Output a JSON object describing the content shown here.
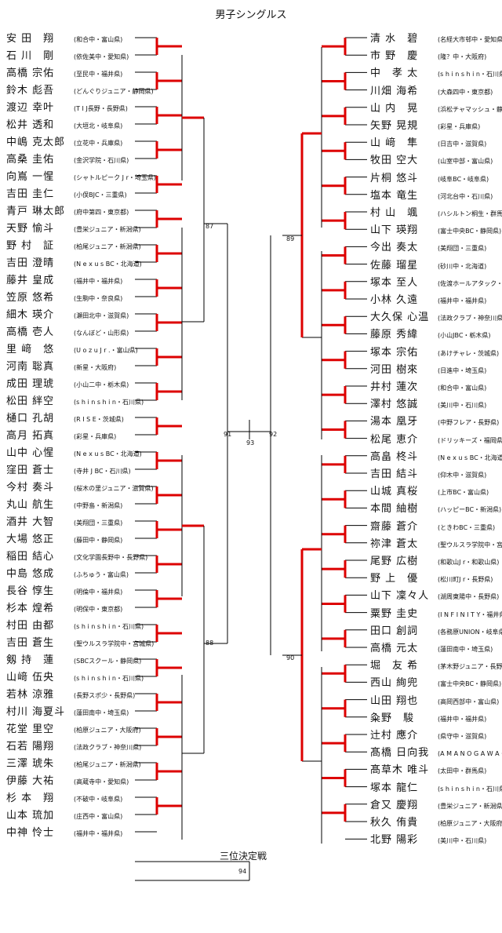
{
  "title": "男子シングルス",
  "third_place": {
    "title": "三位決定戦",
    "match_no": "94"
  },
  "left_players": [
    {
      "name": "安 田　翔",
      "team": "(和合中・富山県)"
    },
    {
      "name": "石 川　剛",
      "team": "(依佐美中・愛知県)"
    },
    {
      "name": "高橋 宗佑",
      "team": "(至民中・福井県)"
    },
    {
      "name": "鈴木 彪吾",
      "team": "(どんぐりジュニア・静岡県)"
    },
    {
      "name": "渡辺 幸叶",
      "team": "(T I J長野・長野県)"
    },
    {
      "name": "松井 透和",
      "team": "(大垣北・岐阜県)"
    },
    {
      "name": "中嶋 克太郎",
      "team": "(立花中・兵庫県)"
    },
    {
      "name": "高桑 圭佑",
      "team": "(金沢学院・石川県)"
    },
    {
      "name": "向嶌 一惺",
      "team": "(シャトルピーク J r・埼玉県)"
    },
    {
      "name": "吉田 圭仁",
      "team": "(小俣BJC・三重県)"
    },
    {
      "name": "青戸 琳太郎",
      "team": "(府中第四・東京都)"
    },
    {
      "name": "天野 愉斗",
      "team": "(豊栄ジュニア・新潟県)"
    },
    {
      "name": "野 村　証",
      "team": "(柏尾ジュニア・新潟県)"
    },
    {
      "name": "吉田 澄晴",
      "team": "(N e x u s BC・北海道)"
    },
    {
      "name": "藤井 皇成",
      "team": "(福井中・福井県)"
    },
    {
      "name": "笠原 悠希",
      "team": "(生駒中・奈良県)"
    },
    {
      "name": "細木 瑛介",
      "team": "(瀬田北中・滋賀県)"
    },
    {
      "name": "高橋 壱人",
      "team": "(なんぼど・山形県)"
    },
    {
      "name": "里 﨑　悠",
      "team": "(U o z u J r .・富山県)"
    },
    {
      "name": "河南 聡真",
      "team": "(新星・大阪府)"
    },
    {
      "name": "成田 理琥",
      "team": "(小山二中・栃木県)"
    },
    {
      "name": "松田 絆空",
      "team": "(s h i n s h i n・石川県)"
    },
    {
      "name": "樋口 孔胡",
      "team": "(R I S E・茨城県)"
    },
    {
      "name": "高月 拓真",
      "team": "(彩星・兵庫県)"
    },
    {
      "name": "山中 心惺",
      "team": "(N e x u s BC・北海道)"
    },
    {
      "name": "窪田 蒼士",
      "team": "(寺井 J BC・石川県)"
    },
    {
      "name": "今村 奏斗",
      "team": "(桜木の里ジュニア・滋賀県)"
    },
    {
      "name": "丸山 航生",
      "team": "(中野島・新潟県)"
    },
    {
      "name": "酒井 大智",
      "team": "(美翔団・三重県)"
    },
    {
      "name": "大場 悠正",
      "team": "(藤田中・静岡県)"
    },
    {
      "name": "稲田 結心",
      "team": "(文化学園長野中・長野県)"
    },
    {
      "name": "中島 悠成",
      "team": "(ふちゅう・富山県)"
    },
    {
      "name": "長谷 惇生",
      "team": "(明倫中・福井県)"
    },
    {
      "name": "杉本 煌希",
      "team": "(明保中・東京都)"
    },
    {
      "name": "村田 由都",
      "team": "(s h i n s h i n・石川県)"
    },
    {
      "name": "吉田 蒼生",
      "team": "(聖ウルスラ学院中・宮城県)"
    },
    {
      "name": "剱 持　蓮",
      "team": "(SBCスクール・静岡県)"
    },
    {
      "name": "山﨑 伍央",
      "team": "(s h i n s h i n・石川県)"
    },
    {
      "name": "若林 涼雅",
      "team": "(長野スポ少・長野県)"
    },
    {
      "name": "村川 海夏斗",
      "team": "(蓮田南中・埼玉県)"
    },
    {
      "name": "花堂 里空",
      "team": "(柏原ジュニア・大阪府)"
    },
    {
      "name": "石若 陽翔",
      "team": "(法政クラブ・神奈川県)"
    },
    {
      "name": "三澤 琥朱",
      "team": "(柏尾ジュニア・新潟県)"
    },
    {
      "name": "伊藤 大祐",
      "team": "(高蔵寺中・愛知県)"
    },
    {
      "name": "杉 本　翔",
      "team": "(不破中・岐阜県)"
    },
    {
      "name": "山本 琉加",
      "team": "(庄西中・富山県)"
    },
    {
      "name": "中神 怜士",
      "team": "(福井中・福井県)"
    }
  ],
  "right_players": [
    {
      "name": "清 水　碧",
      "team": "(名経大市邨中・愛知県)"
    },
    {
      "name": "市 野　慶",
      "team": "(隆？中・大阪府)"
    },
    {
      "name": "中　孝 太",
      "team": "(s h i n s h i n・石川県)"
    },
    {
      "name": "川畑 海希",
      "team": "(大森四中・東京都)"
    },
    {
      "name": "山 内　晃",
      "team": "(浜松チャマッシュ・静岡県)"
    },
    {
      "name": "矢野 晃規",
      "team": "(彩星・兵庫県)"
    },
    {
      "name": "山 﨑　隼",
      "team": "(日吉中・滋賀県)"
    },
    {
      "name": "牧田 空大",
      "team": "(山室中部・富山県)"
    },
    {
      "name": "片桐 悠斗",
      "team": "(岐阜BC・岐阜県)"
    },
    {
      "name": "塩本 竜生",
      "team": "(河北台中・石川県)"
    },
    {
      "name": "村 山　颯",
      "team": "(ハシルトン桐生・群馬県)"
    },
    {
      "name": "山下 瑛翔",
      "team": "(富士中央BC・静岡県)"
    },
    {
      "name": "今出 奏太",
      "team": "(美翔団・三重県)"
    },
    {
      "name": "佐藤 瑠星",
      "team": "(砂川中・北海道)"
    },
    {
      "name": "塚本 至人",
      "team": "(佐渡ホールアタック・新潟県)"
    },
    {
      "name": "小林 久遠",
      "team": "(福井中・福井県)"
    },
    {
      "name": "大久保 心温",
      "team": "(法政クラブ・神奈川県)"
    },
    {
      "name": "藤原 秀緯",
      "team": "(小山JBC・栃木県)"
    },
    {
      "name": "塚本 宗佑",
      "team": "(あけチャレ・茨城県)"
    },
    {
      "name": "河田 樹來",
      "team": "(日進中・埼玉県)"
    },
    {
      "name": "井村 蓮次",
      "team": "(和合中・富山県)"
    },
    {
      "name": "澤村 悠誠",
      "team": "(美川中・石川県)"
    },
    {
      "name": "湯本 凰牙",
      "team": "(中野フレア・長野県)"
    },
    {
      "name": "松尾 恵介",
      "team": "(ドリッキーズ・福岡県)"
    },
    {
      "name": "高畠 柊斗",
      "team": "(N e x u s BC・北海道)"
    },
    {
      "name": "吉田 結斗",
      "team": "(仰木中・滋賀県)"
    },
    {
      "name": "山城 真桜",
      "team": "(上市BC・富山県)"
    },
    {
      "name": "本間 紬樹",
      "team": "(ハッピーBC・新潟県)"
    },
    {
      "name": "齋藤 蒼介",
      "team": "(ときわBC・三重県)"
    },
    {
      "name": "祢津 蒼太",
      "team": "(聖ウルスラ学院中・宮城県)"
    },
    {
      "name": "尾野 広樹",
      "team": "(和歌山J r・和歌山県)"
    },
    {
      "name": "野 上　優",
      "team": "(松川町J r・長野県)"
    },
    {
      "name": "山下 凜々人",
      "team": "(湖周東陽中・長野県)"
    },
    {
      "name": "粟野 圭史",
      "team": "(I N F I N I T Y・福井県)"
    },
    {
      "name": "田口 創詞",
      "team": "(各務原UNION・岐阜県)"
    },
    {
      "name": "高橋 元太",
      "team": "(蓮田南中・埼玉県)"
    },
    {
      "name": "堀　友 希",
      "team": "(茅木野ジュニア・長野県)"
    },
    {
      "name": "西山 絢兜",
      "team": "(富士中央BC・静岡県)"
    },
    {
      "name": "山田 翔也",
      "team": "(高岡西部中・富山県)"
    },
    {
      "name": "粂野　駿",
      "team": "(福井中・福井県)"
    },
    {
      "name": "辻村 應介",
      "team": "(県守中・滋賀県)"
    },
    {
      "name": "髙橋 日向我",
      "team": "(A M A N O G A W A・東京都)"
    },
    {
      "name": "髙草木 唯斗",
      "team": "(太田中・群馬県)"
    },
    {
      "name": "塚本 龍仁",
      "team": "(s h i n s h i n・石川県)"
    },
    {
      "name": "倉又 慶翔",
      "team": "(豊栄ジュニア・新潟県)"
    },
    {
      "name": "秋久 侑貴",
      "team": "(柏原ジュニア・大阪府)"
    },
    {
      "name": "北野 陽彩",
      "team": "(美川中・石川県)"
    }
  ],
  "match_numbers": {
    "m87": "87",
    "m88": "88",
    "m89": "89",
    "m90": "90",
    "m91": "91",
    "m92": "92",
    "m93": "93"
  }
}
